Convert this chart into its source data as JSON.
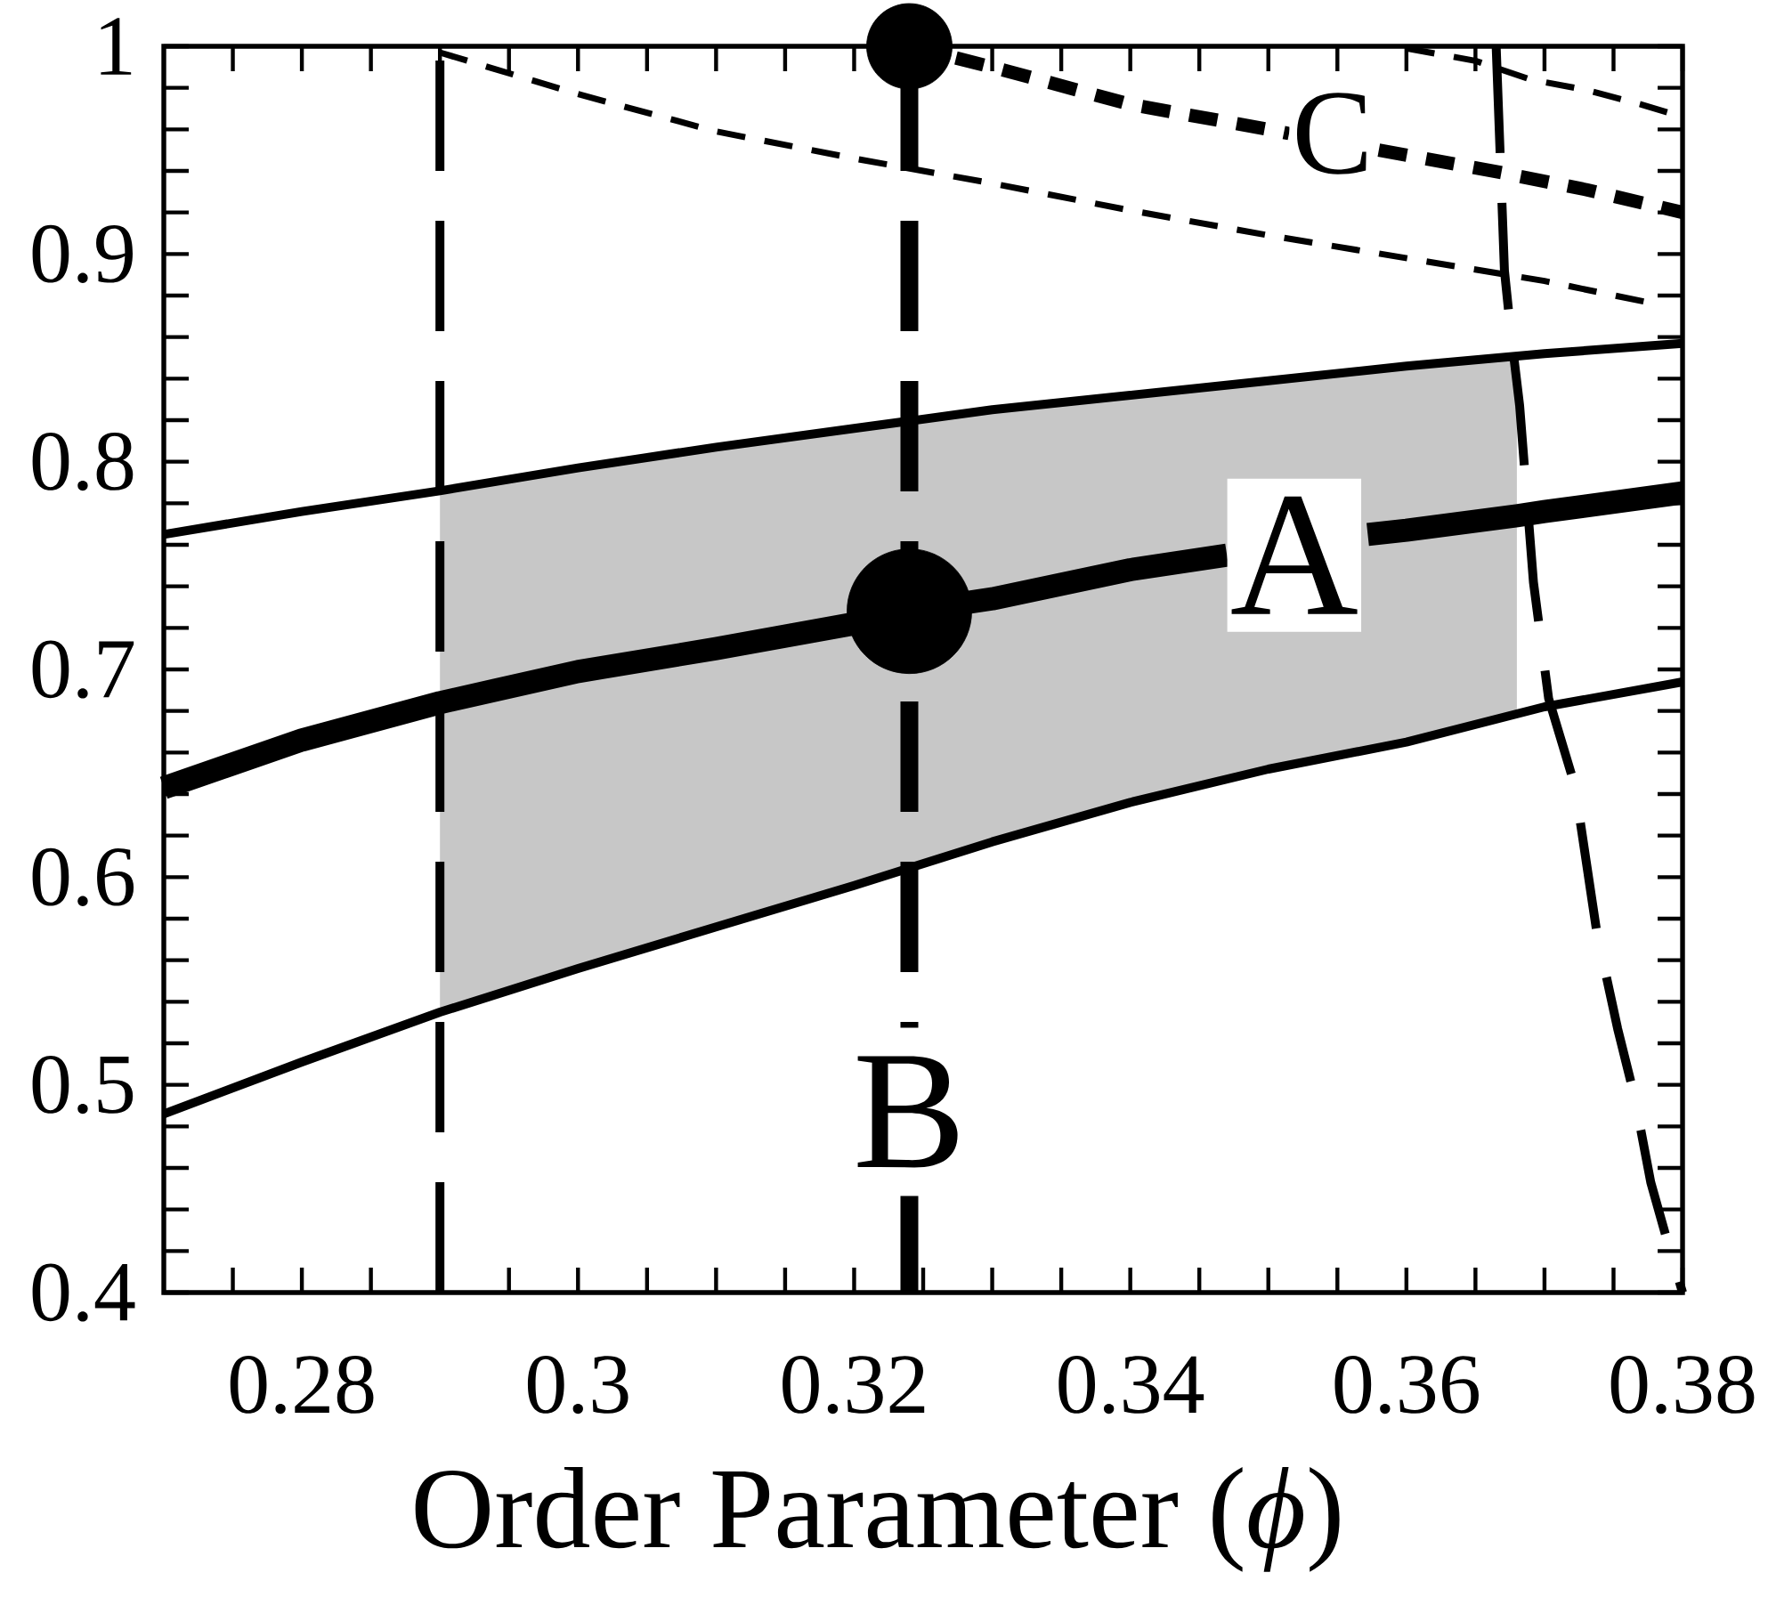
{
  "chart_data": {
    "type": "line",
    "xlabel": "Order Parameter (*ϕ*)",
    "xlim": [
      0.27,
      0.38
    ],
    "ylim": [
      0.4,
      1
    ],
    "xticks": [
      {
        "value": 0.275,
        "label": null
      },
      0.28,
      {
        "value": 0.285,
        "label": null
      },
      {
        "value": 0.29,
        "label": null
      },
      {
        "value": 0.295,
        "label": null
      },
      0.3,
      {
        "value": 0.305,
        "label": null
      },
      {
        "value": 0.31,
        "label": null
      },
      {
        "value": 0.315,
        "label": null
      },
      0.32,
      {
        "value": 0.325,
        "label": null
      },
      {
        "value": 0.33,
        "label": null
      },
      {
        "value": 0.335,
        "label": null
      },
      0.34,
      {
        "value": 0.345,
        "label": null
      },
      {
        "value": 0.35,
        "label": null
      },
      {
        "value": 0.355,
        "label": null
      },
      0.36,
      {
        "value": 0.365,
        "label": null
      },
      {
        "value": 0.37,
        "label": null
      },
      {
        "value": 0.375,
        "label": null
      },
      0.38
    ],
    "yticks": [
      0.4,
      {
        "value": 0.42,
        "label": null
      },
      {
        "value": 0.44,
        "label": null
      },
      {
        "value": 0.46,
        "label": null
      },
      {
        "value": 0.48,
        "label": null
      },
      0.5,
      {
        "value": 0.52,
        "label": null
      },
      {
        "value": 0.54,
        "label": null
      },
      {
        "value": 0.56,
        "label": null
      },
      {
        "value": 0.58,
        "label": null
      },
      0.6,
      {
        "value": 0.62,
        "label": null
      },
      {
        "value": 0.64,
        "label": null
      },
      {
        "value": 0.66,
        "label": null
      },
      {
        "value": 0.68,
        "label": null
      },
      0.7,
      {
        "value": 0.72,
        "label": null
      },
      {
        "value": 0.74,
        "label": null
      },
      {
        "value": 0.76,
        "label": null
      },
      {
        "value": 0.78,
        "label": null
      },
      0.8,
      {
        "value": 0.82,
        "label": null
      },
      {
        "value": 0.84,
        "label": null
      },
      {
        "value": 0.86,
        "label": null
      },
      {
        "value": 0.88,
        "label": null
      },
      0.9,
      {
        "value": 0.92,
        "label": null
      },
      {
        "value": 0.94,
        "label": null
      },
      {
        "value": 0.96,
        "label": null
      },
      {
        "value": 0.98,
        "label": null
      },
      1
    ],
    "series": [
      {
        "color": "#000000",
        "line_style": "solid",
        "x": [
          0.27,
          0.28,
          0.29,
          0.3,
          0.31,
          0.32,
          0.33,
          0.34,
          0.35,
          0.36,
          0.37,
          0.38
        ],
        "values": [
          0.765,
          0.776,
          0.786,
          0.797,
          0.807,
          0.816,
          0.825,
          0.832,
          0.839,
          0.846,
          0.852,
          0.857
        ]
      },
      {
        "color": "#000000",
        "line_style": "solid",
        "x": [
          0.27,
          0.28,
          0.29,
          0.3,
          0.31,
          0.32,
          0.324,
          0.33,
          0.34,
          0.347,
          0.353,
          0.3572,
          0.36,
          0.368,
          0.37,
          0.38
        ],
        "values": [
          0.643,
          0.666,
          0.684,
          0.699,
          0.71,
          0.722,
          0.728,
          0.734,
          0.748,
          0.755,
          null,
          0.765,
          0.767,
          0.774,
          0.776,
          0.785
        ],
        "lower": [
          null,
          null,
          0.535,
          0.556,
          0.576,
          0.596,
          0.604,
          0.617,
          0.636,
          0.647,
          0.656,
          0.662,
          0.665,
          0.679,
          null,
          null
        ],
        "upper": [
          null,
          null,
          0.786,
          0.797,
          0.807,
          0.816,
          0.82,
          0.825,
          0.832,
          0.837,
          0.841,
          0.844,
          0.846,
          0.851,
          null,
          null
        ]
      },
      {
        "color": "#000000",
        "line_style": "solid",
        "x": [
          0.27,
          0.28,
          0.29,
          0.3,
          0.31,
          0.32,
          0.33,
          0.34,
          0.35,
          0.36,
          0.37,
          0.38
        ],
        "values": [
          0.486,
          0.511,
          0.535,
          0.556,
          0.576,
          0.596,
          0.617,
          0.636,
          0.652,
          0.665,
          0.682,
          0.694
        ]
      },
      {
        "color": "#000000",
        "line_style": "dashed",
        "x": [
          0.29,
          0.3,
          0.31,
          0.32,
          0.33,
          0.34,
          0.35,
          0.36,
          0.37,
          0.378
        ],
        "values": [
          0.997,
          0.977,
          0.959,
          0.946,
          0.934,
          0.921,
          0.909,
          0.898,
          0.887,
          0.876
        ]
      },
      {
        "color": "#000000",
        "line_style": "dashed",
        "x": [
          0.324,
          0.33,
          0.34,
          0.35,
          0.3515,
          0.3555,
          0.358,
          0.367,
          0.373,
          0.38
        ],
        "values": [
          1,
          0.99,
          0.972,
          0.96,
          0.958,
          null,
          0.95,
          0.939,
          0.931,
          0.92
        ]
      },
      {
        "color": "#000000",
        "line_style": "dashed",
        "x": [
          0.36,
          0.365,
          0.369,
          0.373,
          0.377,
          0.38
        ],
        "values": [
          0.999,
          0.993,
          0.984,
          0.979,
          0.972,
          0.966
        ]
      },
      {
        "color": "#000000",
        "line_style": "dashed",
        "x": [
          0.3665,
          0.3671,
          0.3675,
          0.3682,
          0.3692,
          0.3703,
          0.3722,
          0.3738,
          0.3753,
          0.3765,
          0.3777,
          0.3788,
          0.38
        ],
        "values": [
          1,
          0.892,
          0.866,
          0.827,
          0.742,
          0.686,
          0.644,
          0.573,
          0.527,
          0.495,
          0.453,
          0.427,
          0.4
        ]
      },
      {
        "type": "scatter",
        "marker": "circle",
        "color": "#000000",
        "x": [
          0.324
        ],
        "values": [
          0.728
        ]
      },
      {
        "type": "scatter",
        "marker": "circle",
        "color": "#000000",
        "x": [
          0.324
        ],
        "values": [
          1
        ]
      }
    ],
    "ref_lines": [
      {
        "axis": "x",
        "value": 0.29,
        "color": "#000000",
        "line_style": "dashed"
      },
      {
        "axis": "x",
        "value": 0.324,
        "label": "B",
        "color": "#000000",
        "line_style": "dashed"
      }
    ],
    "annotations": [
      {
        "text": "A",
        "x": 0.347,
        "y": 0.755
      },
      {
        "text": "C",
        "x": 0.3515,
        "y": 0.958
      }
    ]
  }
}
